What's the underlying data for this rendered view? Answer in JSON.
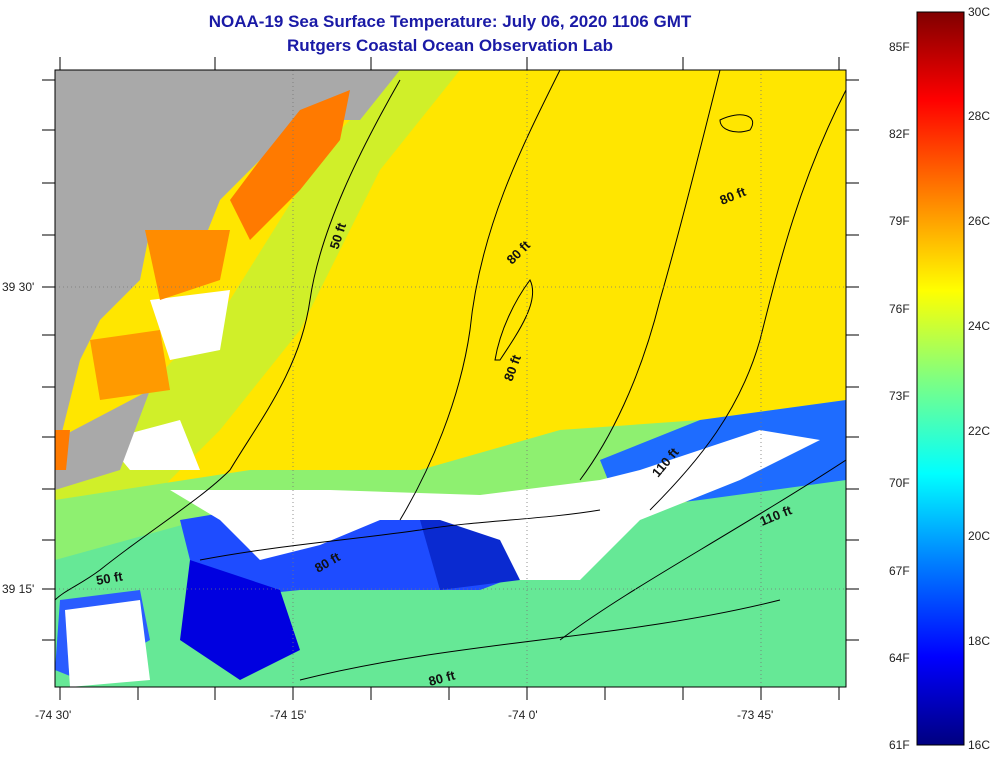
{
  "header": {
    "title_line1": "NOAA-19 Sea Surface Temperature:  July 06, 2020 1106 GMT",
    "title_line2": "Rutgers Coastal Ocean Observation Lab"
  },
  "axes": {
    "lon_ticks": [
      "-74 30'",
      "-74 15'",
      "-74 0'",
      "-73 45'"
    ],
    "lat_ticks": [
      "39 30'",
      "39 15'"
    ]
  },
  "contours": {
    "labels": [
      "50 ft",
      "50 ft",
      "80 ft",
      "80 ft",
      "80 ft",
      "80 ft",
      "80 ft",
      "110 ft",
      "110 ft"
    ]
  },
  "colorbar": {
    "fahrenheit": [
      "85F",
      "82F",
      "79F",
      "76F",
      "73F",
      "70F",
      "67F",
      "64F",
      "61F"
    ],
    "celsius": [
      "30C",
      "28C",
      "26C",
      "24C",
      "22C",
      "20C",
      "18C",
      "16C"
    ]
  },
  "colors": {
    "land": "#a9a9a9",
    "cloud": "#ffffff",
    "title": "#1a1aa6",
    "colorbar_stops": [
      "#000080",
      "#0000ff",
      "#0080ff",
      "#00ffff",
      "#80ff80",
      "#ffff00",
      "#ff8000",
      "#ff0000",
      "#800000"
    ]
  }
}
